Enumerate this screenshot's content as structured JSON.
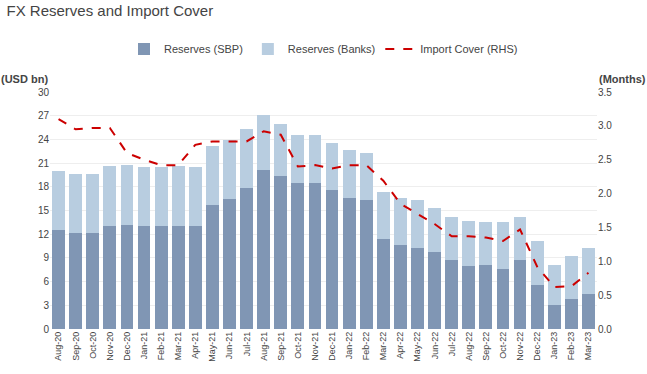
{
  "chart_data": {
    "type": "bar",
    "title": "FX Reserves and Import Cover",
    "ylabel": "(USD bn)",
    "y2label": "(Months)",
    "stacked": true,
    "grid": true,
    "legend": "top",
    "categories": [
      "Aug-20",
      "Sep-20",
      "Oct-20",
      "Nov-20",
      "Dec-20",
      "Jan-21",
      "Feb-21",
      "Mar-21",
      "Apr-21",
      "May-21",
      "Jun-21",
      "Jul-21",
      "Aug-21",
      "Sep-21",
      "Oct-21",
      "Nov-21",
      "Dec-21",
      "Jan-22",
      "Feb-22",
      "Mar-22",
      "Apr-22",
      "May-22",
      "Jun-22",
      "Jul-22",
      "Aug-22",
      "Sep-22",
      "Oct-22",
      "Nov-22",
      "Dec-22",
      "Jan-23",
      "Feb-23",
      "Mar-23"
    ],
    "series": [
      {
        "name": "Reserves (SBP)",
        "type": "bar",
        "color": "#8096b4",
        "values": [
          12.5,
          12.1,
          12.1,
          13.1,
          13.2,
          13.0,
          13.0,
          13.1,
          13.0,
          15.7,
          16.4,
          17.8,
          20.1,
          19.4,
          18.5,
          18.5,
          17.6,
          16.6,
          16.3,
          11.4,
          10.6,
          10.3,
          9.8,
          8.7,
          8.0,
          8.1,
          7.6,
          8.7,
          5.6,
          3.1,
          3.8,
          4.4
        ]
      },
      {
        "name": "Reserves (Banks)",
        "type": "bar",
        "color": "#b8cde0",
        "values": [
          7.5,
          7.5,
          7.5,
          7.5,
          7.5,
          7.5,
          7.5,
          7.5,
          7.5,
          7.5,
          7.5,
          7.5,
          7.0,
          6.5,
          6.0,
          6.0,
          6.0,
          6.0,
          6.0,
          6.0,
          6.0,
          6.0,
          5.5,
          5.5,
          5.7,
          5.5,
          6.0,
          5.5,
          5.5,
          5.0,
          5.5,
          5.8
        ]
      },
      {
        "name": "Import Cover (RHS)",
        "type": "line",
        "axis": "y2",
        "color": "#cc0000",
        "line_style": "dashed",
        "values": [
          3.1,
          2.95,
          2.97,
          2.97,
          2.6,
          2.5,
          2.42,
          2.42,
          2.72,
          2.77,
          2.77,
          2.77,
          2.92,
          2.87,
          2.4,
          2.42,
          2.37,
          2.42,
          2.42,
          2.19,
          1.85,
          1.7,
          1.55,
          1.37,
          1.37,
          1.35,
          1.3,
          1.47,
          0.92,
          0.62,
          0.63,
          0.83
        ]
      }
    ],
    "ylim": [
      0,
      30
    ],
    "yticks": [
      0,
      3,
      6,
      9,
      12,
      15,
      18,
      21,
      24,
      27,
      30
    ],
    "y2lim": [
      0,
      3.5
    ],
    "y2ticks": [
      {
        "value": 0.0,
        "label": "0.0"
      },
      0.5,
      {
        "value": 1.0,
        "label": "1.0"
      },
      1.5,
      {
        "value": 2.0,
        "label": "2.0"
      },
      2.5,
      {
        "value": 3.0,
        "label": "3.0"
      },
      3.5
    ]
  }
}
